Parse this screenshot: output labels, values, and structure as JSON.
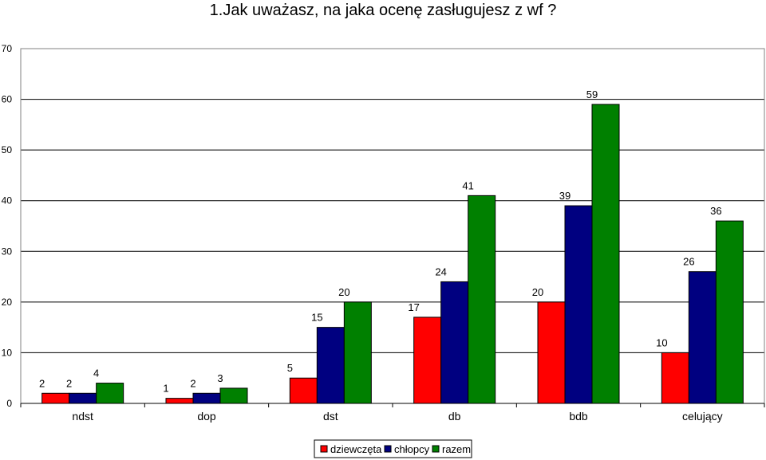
{
  "chart_data": {
    "type": "bar",
    "title": "1.Jak uważasz, na jaka ocenę zasługujesz z wf ?",
    "xlabel": "",
    "ylabel": "",
    "categories": [
      "ndst",
      "dop",
      "dst",
      "db",
      "bdb",
      "celujący"
    ],
    "series": [
      {
        "name": "dziewczęta",
        "color": "#ff0000",
        "values": [
          2,
          1,
          5,
          17,
          20,
          10
        ]
      },
      {
        "name": "chłopcy",
        "color": "#000080",
        "values": [
          2,
          2,
          15,
          24,
          39,
          26
        ]
      },
      {
        "name": "razem",
        "color": "#008000",
        "values": [
          4,
          3,
          20,
          41,
          59,
          36
        ]
      }
    ],
    "ylim": [
      0,
      70
    ],
    "yticks": [
      0,
      10,
      20,
      30,
      40,
      50,
      60,
      70
    ],
    "grid": true,
    "legend_position": "bottom"
  }
}
